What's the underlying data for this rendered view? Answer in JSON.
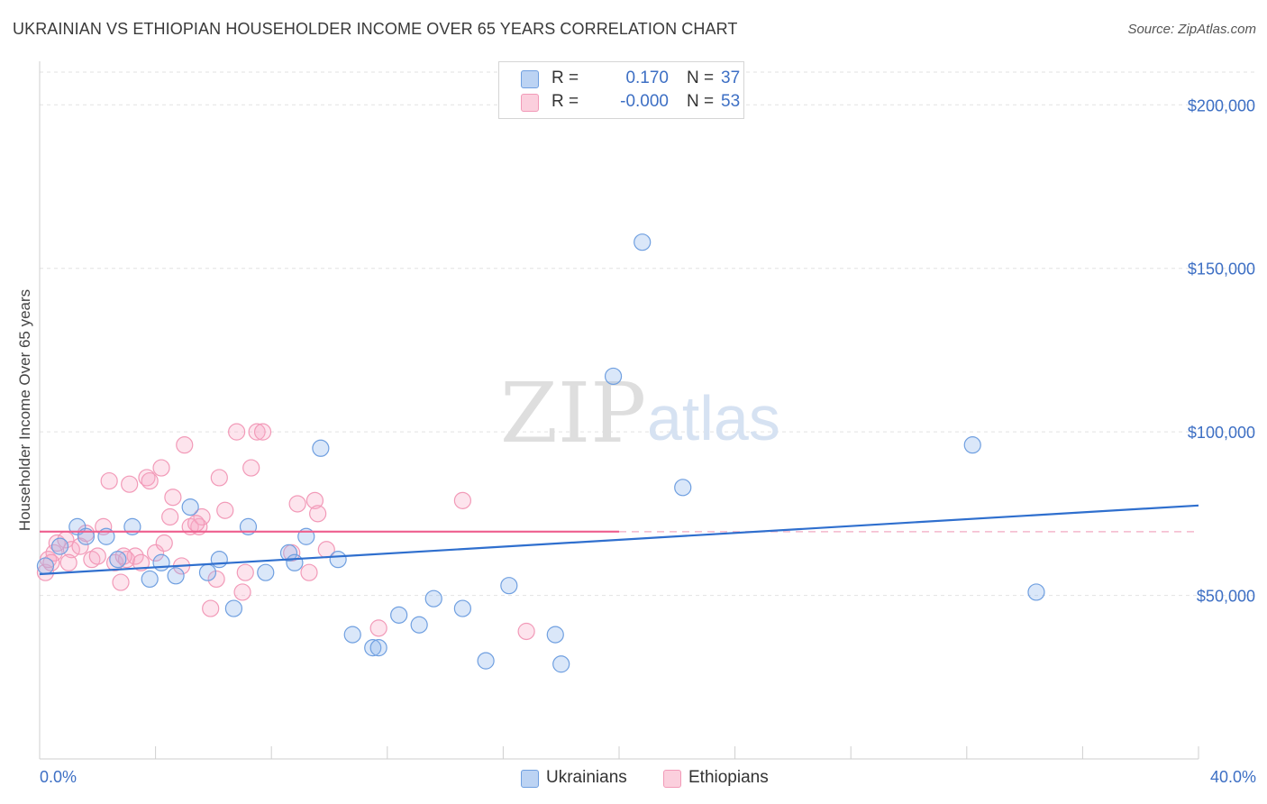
{
  "header": {
    "title": "UKRAINIAN VS ETHIOPIAN HOUSEHOLDER INCOME OVER 65 YEARS CORRELATION CHART",
    "source": "Source: ZipAtlas.com"
  },
  "legend": {
    "rows": [
      {
        "r_label": "R =",
        "r_value": "0.170",
        "n_label": "N =",
        "n_value": "37"
      },
      {
        "r_label": "R =",
        "r_value": "-0.000",
        "n_label": "N =",
        "n_value": "53"
      }
    ]
  },
  "watermark": {
    "zip": "ZIP",
    "atlas": "atlas"
  },
  "chart_data": {
    "type": "scatter",
    "title": "UKRAINIAN VS ETHIOPIAN HOUSEHOLDER INCOME OVER 65 YEARS CORRELATION CHART",
    "xlabel": "",
    "ylabel": "Householder Income Over 65 years",
    "xlim": [
      0,
      40
    ],
    "ylim": [
      0,
      210000
    ],
    "x_tick_labels": [
      "0.0%",
      "40.0%"
    ],
    "y_ticks": [
      50000,
      100000,
      150000,
      200000
    ],
    "y_tick_labels": [
      "$50,000",
      "$100,000",
      "$150,000",
      "$200,000"
    ],
    "grid": "horizontal dashed",
    "legend_position": "bottom-center",
    "colors": {
      "ukrainians": "#6f9fe0",
      "ethiopians": "#f29ab8",
      "ukrainians_line": "#2f6fce",
      "ethiopians_line": "#ee5f8e"
    },
    "series": [
      {
        "name": "Ukrainians",
        "points": [
          [
            0.2,
            59000
          ],
          [
            0.7,
            65000
          ],
          [
            1.3,
            71000
          ],
          [
            1.6,
            68000
          ],
          [
            2.3,
            68000
          ],
          [
            2.7,
            61000
          ],
          [
            3.2,
            71000
          ],
          [
            3.8,
            55000
          ],
          [
            4.2,
            60000
          ],
          [
            4.7,
            56000
          ],
          [
            5.2,
            77000
          ],
          [
            5.8,
            57000
          ],
          [
            6.2,
            61000
          ],
          [
            6.7,
            46000
          ],
          [
            7.2,
            71000
          ],
          [
            7.8,
            57000
          ],
          [
            8.6,
            63000
          ],
          [
            8.8,
            60000
          ],
          [
            9.2,
            68000
          ],
          [
            9.7,
            95000
          ],
          [
            10.3,
            61000
          ],
          [
            10.8,
            38000
          ],
          [
            11.5,
            34000
          ],
          [
            11.7,
            34000
          ],
          [
            12.4,
            44000
          ],
          [
            13.1,
            41000
          ],
          [
            13.6,
            49000
          ],
          [
            14.6,
            46000
          ],
          [
            15.4,
            30000
          ],
          [
            16.2,
            53000
          ],
          [
            17.8,
            38000
          ],
          [
            18.0,
            29000
          ],
          [
            19.8,
            117000
          ],
          [
            20.8,
            158000
          ],
          [
            22.2,
            83000
          ],
          [
            32.2,
            96000
          ],
          [
            34.4,
            51000
          ]
        ],
        "trend": {
          "x": [
            0,
            40
          ],
          "y": [
            56500,
            77500
          ]
        }
      },
      {
        "name": "Ethiopians",
        "points": [
          [
            0.2,
            57000
          ],
          [
            0.3,
            61000
          ],
          [
            0.5,
            63000
          ],
          [
            0.6,
            66000
          ],
          [
            0.9,
            67000
          ],
          [
            1.1,
            64000
          ],
          [
            1.4,
            65000
          ],
          [
            1.6,
            69000
          ],
          [
            1.8,
            61000
          ],
          [
            2.0,
            62000
          ],
          [
            2.2,
            71000
          ],
          [
            2.4,
            85000
          ],
          [
            2.6,
            60000
          ],
          [
            2.8,
            54000
          ],
          [
            3.0,
            61000
          ],
          [
            3.1,
            84000
          ],
          [
            3.3,
            62000
          ],
          [
            3.5,
            60000
          ],
          [
            3.7,
            86000
          ],
          [
            3.8,
            85000
          ],
          [
            4.0,
            63000
          ],
          [
            4.2,
            89000
          ],
          [
            4.3,
            66000
          ],
          [
            4.5,
            74000
          ],
          [
            4.6,
            80000
          ],
          [
            4.9,
            59000
          ],
          [
            5.0,
            96000
          ],
          [
            5.2,
            71000
          ],
          [
            5.5,
            71000
          ],
          [
            5.6,
            74000
          ],
          [
            5.9,
            46000
          ],
          [
            6.1,
            55000
          ],
          [
            6.2,
            86000
          ],
          [
            6.4,
            76000
          ],
          [
            6.8,
            100000
          ],
          [
            7.0,
            51000
          ],
          [
            7.1,
            57000
          ],
          [
            7.3,
            89000
          ],
          [
            7.5,
            100000
          ],
          [
            7.7,
            100000
          ],
          [
            8.7,
            63000
          ],
          [
            8.9,
            78000
          ],
          [
            9.3,
            57000
          ],
          [
            9.5,
            79000
          ],
          [
            9.6,
            75000
          ],
          [
            9.9,
            64000
          ],
          [
            11.7,
            40000
          ],
          [
            14.6,
            79000
          ],
          [
            16.8,
            39000
          ],
          [
            5.4,
            72000
          ],
          [
            1.0,
            60000
          ],
          [
            2.9,
            62000
          ],
          [
            0.4,
            60000
          ]
        ],
        "trend": {
          "x": [
            0,
            20
          ],
          "y": [
            69500,
            69500
          ]
        },
        "trend_extension": {
          "x": [
            20,
            40
          ],
          "y": [
            69500,
            69500
          ]
        }
      }
    ]
  }
}
